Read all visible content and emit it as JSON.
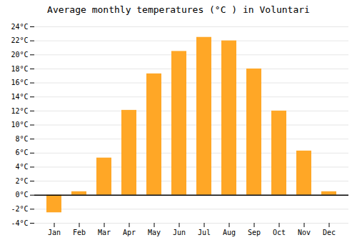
{
  "chart_data": {
    "type": "bar",
    "title": "Average monthly temperatures (°C ) in Voluntari",
    "categories": [
      "Jan",
      "Feb",
      "Mar",
      "Apr",
      "May",
      "Jun",
      "Jul",
      "Aug",
      "Sep",
      "Oct",
      "Nov",
      "Dec"
    ],
    "values": [
      -2.5,
      0.5,
      5.3,
      12.1,
      17.3,
      20.5,
      22.5,
      22.0,
      18.0,
      12.0,
      6.3,
      0.5
    ],
    "color": "#FFA726",
    "ylim": [
      -4,
      24
    ],
    "yticks": [
      {
        "value": -4,
        "label": "-4°C"
      },
      {
        "value": -2,
        "label": "-2°C"
      },
      {
        "value": 0,
        "label": "0°C"
      },
      {
        "value": 2,
        "label": "2°C"
      },
      {
        "value": 4,
        "label": "4°C"
      },
      {
        "value": 6,
        "label": "6°C"
      },
      {
        "value": 8,
        "label": "8°C"
      },
      {
        "value": 10,
        "label": "10°C"
      },
      {
        "value": 12,
        "label": "12°C"
      },
      {
        "value": 14,
        "label": "14°C"
      },
      {
        "value": 16,
        "label": "16°C"
      },
      {
        "value": 18,
        "label": "18°C"
      },
      {
        "value": 20,
        "label": "20°C"
      },
      {
        "value": 22,
        "label": "22°C"
      },
      {
        "value": 24,
        "label": "24°C"
      }
    ],
    "grid": true
  }
}
